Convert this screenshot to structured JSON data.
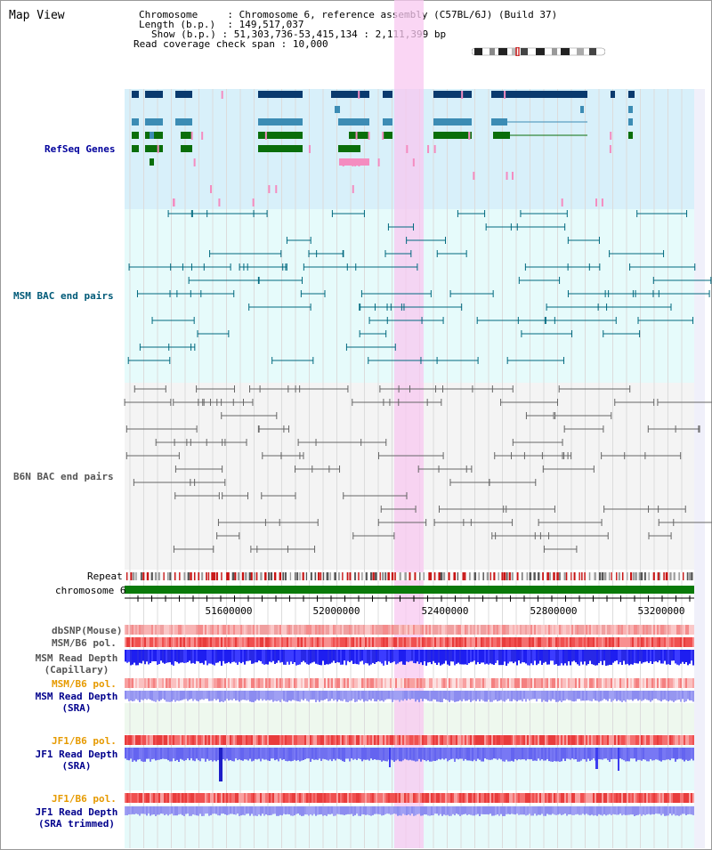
{
  "title": "Map View",
  "header": {
    "chromosome_label": "Chromosome",
    "chromosome_value": "Chromosome 6, reference assembly (C57BL/6J) (Build 37)",
    "length_label": "Length (b.p.)",
    "length_value": "149,517,037",
    "show_label": "Show (b.p.)",
    "show_value": "51,303,736-53,415,134 : 2,111,399 bp",
    "span_label": "Read coverage check span",
    "span_value": "10,000"
  },
  "tracks": {
    "refseq": "RefSeq Genes",
    "msm_bac": "MSM BAC end pairs",
    "b6n_bac": "B6N BAC end pairs",
    "repeat": "Repeat",
    "chromosome": "chromosome 6",
    "dbsnp": "dbSNP(Mouse)",
    "msm_pol1": "MSM/B6 pol.",
    "msm_depth_cap_1": "MSM Read Depth",
    "msm_depth_cap_2": "(Capillary)",
    "msm_pol2": "MSM/B6 pol.",
    "msm_depth_sra_1": "MSM Read Depth",
    "msm_depth_sra_2": "(SRA)",
    "jf1_pol1": "JF1/B6 pol.",
    "jf1_depth_sra_1": "JF1 Read Depth",
    "jf1_depth_sra_2": "(SRA)",
    "jf1_pol2": "JF1/B6 pol.",
    "jf1_depth_trim_1": "JF1 Read Depth",
    "jf1_depth_trim_2": "(SRA trimmed)"
  },
  "axis": {
    "ticks": [
      "51600000",
      "52000000",
      "52400000",
      "52800000",
      "53200000"
    ]
  },
  "colors": {
    "refseq_label": "#00009c",
    "msm_bac_label": "#005a78",
    "b6n_bac_label": "#555555",
    "gene_dark": "#0a3a6e",
    "gene_mid": "#3c8cb4",
    "gene_green": "#0a6e0a",
    "chromosome_bar": "#0a7a0a",
    "highlight": "#f8c8f0",
    "pol_orange": "#e69a00",
    "depth_blue": "#00008c"
  }
}
